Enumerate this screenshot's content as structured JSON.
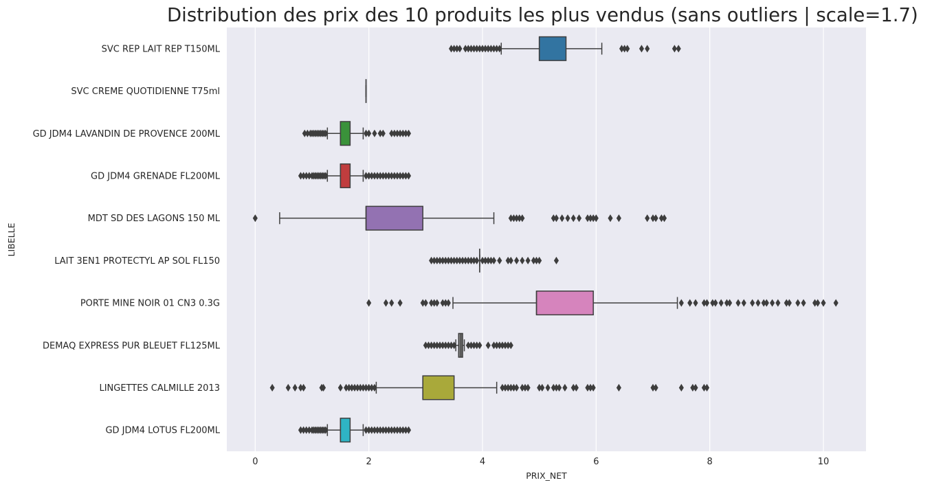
{
  "chart_data": {
    "type": "boxplot",
    "orientation": "horizontal",
    "title": "Distribution des prix des 10 produits les plus vendus (sans outliers | scale=1.7)",
    "xlabel": "PRIX_NET",
    "ylabel": "LIBELLE",
    "xlim": [
      -0.5,
      10.75
    ],
    "xticks": [
      0,
      2,
      4,
      6,
      8,
      10
    ],
    "grid": true,
    "categories": [
      "SVC REP LAIT REP T150ML",
      "SVC CREME QUOTIDIENNE T75ml",
      "GD JDM4 LAVANDIN DE PROVENCE 200ML",
      "GD JDM4 GRENADE FL200ML",
      "MDT SD DES LAGONS 150 ML",
      "LAIT 3EN1 PROTECTYL AP SOL FL150",
      "PORTE MINE NOIR 01 CN3 0.3G",
      "DEMAQ EXPRESS PUR BLEUET FL125ML",
      "LINGETTES CALMILLE 2013",
      "GD JDM4 LOTUS FL200ML"
    ],
    "boxes": [
      {
        "label": "SVC REP LAIT REP T150ML",
        "color": "#3274a1",
        "whisker_low": 4.33,
        "q1": 5.0,
        "median": 5.0,
        "q3": 5.47,
        "whisker_high": 6.1,
        "outliers": [
          3.45,
          3.5,
          3.55,
          3.6,
          3.7,
          3.75,
          3.8,
          3.85,
          3.9,
          3.95,
          4.0,
          4.05,
          4.1,
          4.15,
          4.2,
          4.25,
          4.3,
          6.45,
          6.5,
          6.55,
          6.8,
          6.9,
          7.38,
          7.45
        ]
      },
      {
        "label": "SVC CREME QUOTIDIENNE T75ml",
        "color": "#e1812c",
        "whisker_low": 1.95,
        "q1": 1.95,
        "median": 1.95,
        "q3": 1.95,
        "whisker_high": 1.95,
        "outliers": []
      },
      {
        "label": "GD JDM4 LAVANDIN DE PROVENCE 200ML",
        "color": "#3a923a",
        "whisker_low": 1.27,
        "q1": 1.5,
        "median": 1.5,
        "q3": 1.67,
        "whisker_high": 1.9,
        "outliers": [
          0.87,
          0.92,
          0.97,
          1.0,
          1.03,
          1.06,
          1.09,
          1.12,
          1.15,
          1.18,
          1.21,
          1.24,
          1.95,
          2.0,
          2.1,
          2.2,
          2.25,
          2.4,
          2.45,
          2.5,
          2.55,
          2.6,
          2.65,
          2.7
        ]
      },
      {
        "label": "GD JDM4 GRENADE FL200ML",
        "color": "#c03d3e",
        "whisker_low": 1.27,
        "q1": 1.5,
        "median": 1.5,
        "q3": 1.67,
        "whisker_high": 1.9,
        "outliers": [
          0.8,
          0.85,
          0.9,
          0.95,
          1.0,
          1.03,
          1.06,
          1.09,
          1.12,
          1.15,
          1.18,
          1.21,
          1.24,
          1.95,
          2.0,
          2.05,
          2.1,
          2.15,
          2.2,
          2.25,
          2.3,
          2.35,
          2.4,
          2.45,
          2.5,
          2.55,
          2.6,
          2.65,
          2.7
        ]
      },
      {
        "label": "MDT SD DES LAGONS 150 ML",
        "color": "#9372b2",
        "whisker_low": 0.43,
        "q1": 1.95,
        "median": 1.95,
        "q3": 2.95,
        "whisker_high": 4.2,
        "outliers": [
          0.0,
          4.5,
          4.55,
          4.6,
          4.65,
          4.7,
          5.25,
          5.3,
          5.4,
          5.5,
          5.6,
          5.7,
          5.85,
          5.9,
          5.95,
          6.0,
          6.25,
          6.4,
          6.9,
          7.0,
          7.05,
          7.15,
          7.2
        ]
      },
      {
        "label": "LAIT 3EN1 PROTECTYL AP SOL FL150",
        "color": "#845b53",
        "whisker_low": 3.95,
        "q1": 3.95,
        "median": 3.95,
        "q3": 3.95,
        "whisker_high": 3.95,
        "outliers": [
          3.1,
          3.15,
          3.2,
          3.25,
          3.3,
          3.35,
          3.4,
          3.45,
          3.5,
          3.55,
          3.6,
          3.65,
          3.7,
          3.75,
          3.8,
          3.85,
          3.9,
          4.0,
          4.05,
          4.1,
          4.15,
          4.2,
          4.3,
          4.45,
          4.5,
          4.6,
          4.7,
          4.8,
          4.9,
          4.95,
          5.0,
          5.3
        ]
      },
      {
        "label": "PORTE MINE NOIR 01 CN3 0.3G",
        "color": "#d684bd",
        "whisker_low": 3.48,
        "q1": 4.95,
        "median": 4.95,
        "q3": 5.95,
        "whisker_high": 7.43,
        "outliers": [
          2.0,
          2.3,
          2.4,
          2.55,
          2.95,
          3.0,
          3.1,
          3.15,
          3.2,
          3.3,
          3.35,
          3.4,
          7.5,
          7.65,
          7.75,
          7.9,
          7.95,
          8.05,
          8.1,
          8.2,
          8.3,
          8.35,
          8.5,
          8.6,
          8.75,
          8.85,
          8.95,
          9.0,
          9.1,
          9.2,
          9.35,
          9.4,
          9.55,
          9.65,
          9.85,
          9.9,
          10.0,
          10.22
        ]
      },
      {
        "label": "DEMAQ EXPRESS PUR BLEUET FL125ML",
        "color": "#7f7f7f",
        "whisker_low": 3.53,
        "q1": 3.58,
        "median": 3.62,
        "q3": 3.65,
        "whisker_high": 3.68,
        "outliers": [
          3.0,
          3.05,
          3.1,
          3.15,
          3.2,
          3.25,
          3.3,
          3.35,
          3.4,
          3.45,
          3.5,
          3.75,
          3.8,
          3.85,
          3.9,
          3.95,
          4.1,
          4.2,
          4.25,
          4.3,
          4.35,
          4.4,
          4.45,
          4.5
        ]
      },
      {
        "label": "LINGETTES CALMILLE 2013",
        "color": "#a9a93a",
        "whisker_low": 2.13,
        "q1": 2.95,
        "median": 2.95,
        "q3": 3.5,
        "whisker_high": 4.25,
        "outliers": [
          0.3,
          0.58,
          0.7,
          0.8,
          0.85,
          1.17,
          1.2,
          1.5,
          1.6,
          1.65,
          1.7,
          1.75,
          1.8,
          1.85,
          1.9,
          1.95,
          2.0,
          2.05,
          2.1,
          4.35,
          4.4,
          4.45,
          4.5,
          4.55,
          4.6,
          4.7,
          4.75,
          4.8,
          5.0,
          5.05,
          5.15,
          5.25,
          5.3,
          5.35,
          5.45,
          5.6,
          5.65,
          5.85,
          5.9,
          5.95,
          6.4,
          7.0,
          7.05,
          7.5,
          7.7,
          7.75,
          7.9,
          7.95
        ]
      },
      {
        "label": "GD JDM4 LOTUS FL200ML",
        "color": "#2fb4c4",
        "whisker_low": 1.27,
        "q1": 1.5,
        "median": 1.5,
        "q3": 1.67,
        "whisker_high": 1.9,
        "outliers": [
          0.8,
          0.85,
          0.9,
          0.95,
          1.0,
          1.03,
          1.06,
          1.09,
          1.12,
          1.15,
          1.18,
          1.21,
          1.24,
          1.95,
          2.0,
          2.05,
          2.1,
          2.15,
          2.2,
          2.25,
          2.3,
          2.35,
          2.4,
          2.45,
          2.5,
          2.55,
          2.6,
          2.65,
          2.7
        ]
      }
    ],
    "colors": {
      "plot_background": "#eaeaf2",
      "gridline": "#ffffff",
      "box_edge": "#3f3f3f",
      "text": "#262626"
    }
  }
}
